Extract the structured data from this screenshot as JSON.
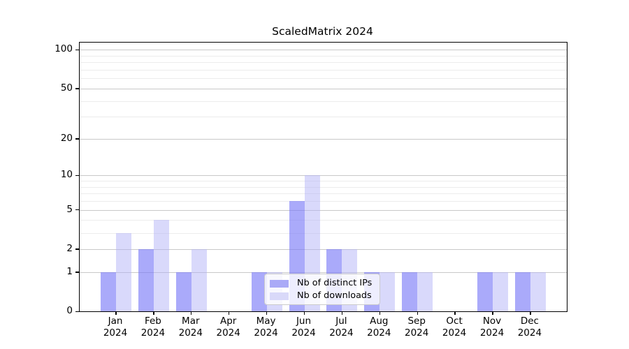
{
  "title": "ScaledMatrix 2024",
  "chart_data": {
    "type": "bar",
    "title": "ScaledMatrix 2024",
    "categories": [
      "Jan",
      "Feb",
      "Mar",
      "Apr",
      "May",
      "Jun",
      "Jul",
      "Aug",
      "Sep",
      "Oct",
      "Nov",
      "Dec"
    ],
    "x_tick_second_line": "2024",
    "series": [
      {
        "name": "Nb of distinct IPs",
        "color": "rgba(120,120,247,0.63)",
        "legend_color": "#aaaaf7",
        "values": [
          1,
          2,
          1,
          0,
          1,
          6,
          2,
          1,
          1,
          0,
          1,
          1
        ]
      },
      {
        "name": "Nb of downloads",
        "color": "rgba(172,172,246,0.46)",
        "legend_color": "#d9d9f9",
        "values": [
          3,
          4,
          2,
          0,
          1,
          10,
          2,
          1,
          1,
          0,
          1,
          1
        ]
      }
    ],
    "yscale": "log1p",
    "ylim": [
      0,
      114
    ],
    "y_ticks": [
      {
        "label": "100",
        "value": 100
      },
      {
        "label": "50",
        "value": 50
      },
      {
        "label": "20",
        "value": 20
      },
      {
        "label": "10",
        "value": 10
      },
      {
        "label": "5",
        "value": 5
      },
      {
        "label": "2",
        "value": 2
      },
      {
        "label": "1",
        "value": 1
      },
      {
        "label": "0",
        "value": 0
      }
    ],
    "y_minor_gridlines": [
      3,
      4,
      6,
      7,
      8,
      9,
      30,
      40,
      60,
      70,
      80,
      90
    ],
    "grid": true,
    "legend_position": "lower center",
    "colors": {
      "major_grid": "#c9c9c9",
      "minor_grid": "#ececec",
      "spine": "#000000",
      "background": "#ffffff"
    }
  },
  "legend": {
    "entries": [
      "Nb of distinct IPs",
      "Nb of downloads"
    ]
  }
}
